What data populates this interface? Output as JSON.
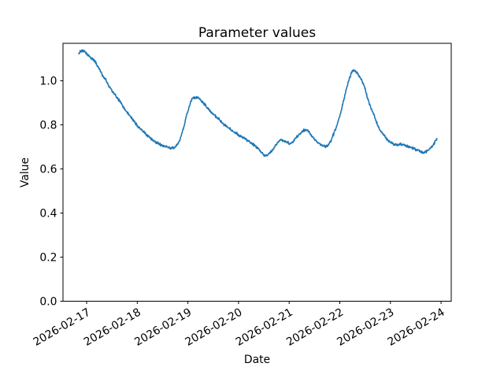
{
  "figure": {
    "background": "#ffffff"
  },
  "chart_data": {
    "type": "line",
    "title": "Parameter values",
    "xlabel": "Date",
    "ylabel": "Value",
    "x_tick_labels": [
      "2026-02-17",
      "2026-02-18",
      "2026-02-19",
      "2026-02-20",
      "2026-02-21",
      "2026-02-22",
      "2026-02-23",
      "2026-02-24"
    ],
    "x_tick_rotation_deg": 30,
    "y_tick_labels": [
      "0.0",
      "0.2",
      "0.4",
      "0.6",
      "0.8",
      "1.0"
    ],
    "y_tick_values": [
      0.0,
      0.2,
      0.4,
      0.6,
      0.8,
      1.0
    ],
    "ylim": [
      0.0,
      1.17
    ],
    "xlim_days": [
      -0.467,
      7.201
    ],
    "grid": false,
    "line_color": "#1f77b4",
    "axis_color": "#000000",
    "series": [
      {
        "name": "parameter-values",
        "x_unit": "days_since_2026-02-17",
        "keypoints_t": [
          -0.155,
          -0.11,
          -0.06,
          -0.01,
          0.08,
          0.16,
          0.24,
          0.31,
          0.39,
          0.47,
          0.54,
          0.62,
          0.7,
          0.78,
          0.86,
          0.93,
          1.01,
          1.09,
          1.17,
          1.24,
          1.32,
          1.4,
          1.48,
          1.56,
          1.62,
          1.68,
          1.73,
          1.78,
          1.84,
          1.9,
          1.96,
          2.02,
          2.07,
          2.11,
          2.16,
          2.2,
          2.24,
          2.3,
          2.34,
          2.42,
          2.49,
          2.57,
          2.64,
          2.72,
          2.8,
          2.88,
          2.95,
          3.03,
          3.11,
          3.19,
          3.27,
          3.35,
          3.42,
          3.48,
          3.53,
          3.58,
          3.65,
          3.7,
          3.77,
          3.83,
          3.89,
          3.96,
          4.03,
          4.09,
          4.16,
          4.24,
          4.31,
          4.38,
          4.45,
          4.52,
          4.6,
          4.66,
          4.71,
          4.77,
          4.83,
          4.93,
          5.02,
          5.1,
          5.18,
          5.24,
          5.28,
          5.33,
          5.38,
          5.44,
          5.49,
          5.53,
          5.57,
          5.62,
          5.67,
          5.71,
          5.76,
          5.81,
          5.86,
          5.91,
          5.97,
          6.03,
          6.08,
          6.14,
          6.2,
          6.28,
          6.36,
          6.44,
          6.52,
          6.6,
          6.66,
          6.73,
          6.8,
          6.86,
          6.92
        ],
        "keypoints_v": [
          1.127,
          1.133,
          1.135,
          1.126,
          1.105,
          1.089,
          1.058,
          1.025,
          0.998,
          0.965,
          0.942,
          0.918,
          0.89,
          0.862,
          0.84,
          0.817,
          0.795,
          0.775,
          0.758,
          0.745,
          0.728,
          0.718,
          0.706,
          0.702,
          0.697,
          0.693,
          0.695,
          0.706,
          0.731,
          0.775,
          0.83,
          0.878,
          0.912,
          0.926,
          0.92,
          0.926,
          0.916,
          0.9,
          0.889,
          0.868,
          0.852,
          0.835,
          0.818,
          0.8,
          0.787,
          0.772,
          0.763,
          0.75,
          0.739,
          0.727,
          0.716,
          0.7,
          0.684,
          0.667,
          0.659,
          0.663,
          0.679,
          0.697,
          0.719,
          0.734,
          0.728,
          0.72,
          0.715,
          0.728,
          0.747,
          0.765,
          0.778,
          0.771,
          0.75,
          0.73,
          0.714,
          0.705,
          0.701,
          0.707,
          0.73,
          0.79,
          0.858,
          0.935,
          1.005,
          1.04,
          1.047,
          1.038,
          1.022,
          0.998,
          0.972,
          0.938,
          0.905,
          0.875,
          0.85,
          0.818,
          0.795,
          0.773,
          0.757,
          0.74,
          0.727,
          0.716,
          0.71,
          0.709,
          0.713,
          0.706,
          0.702,
          0.695,
          0.686,
          0.678,
          0.674,
          0.681,
          0.696,
          0.716,
          0.735
        ],
        "samples": 1050,
        "noise_amplitude": 0.0075,
        "noise_seed": 42
      }
    ]
  }
}
